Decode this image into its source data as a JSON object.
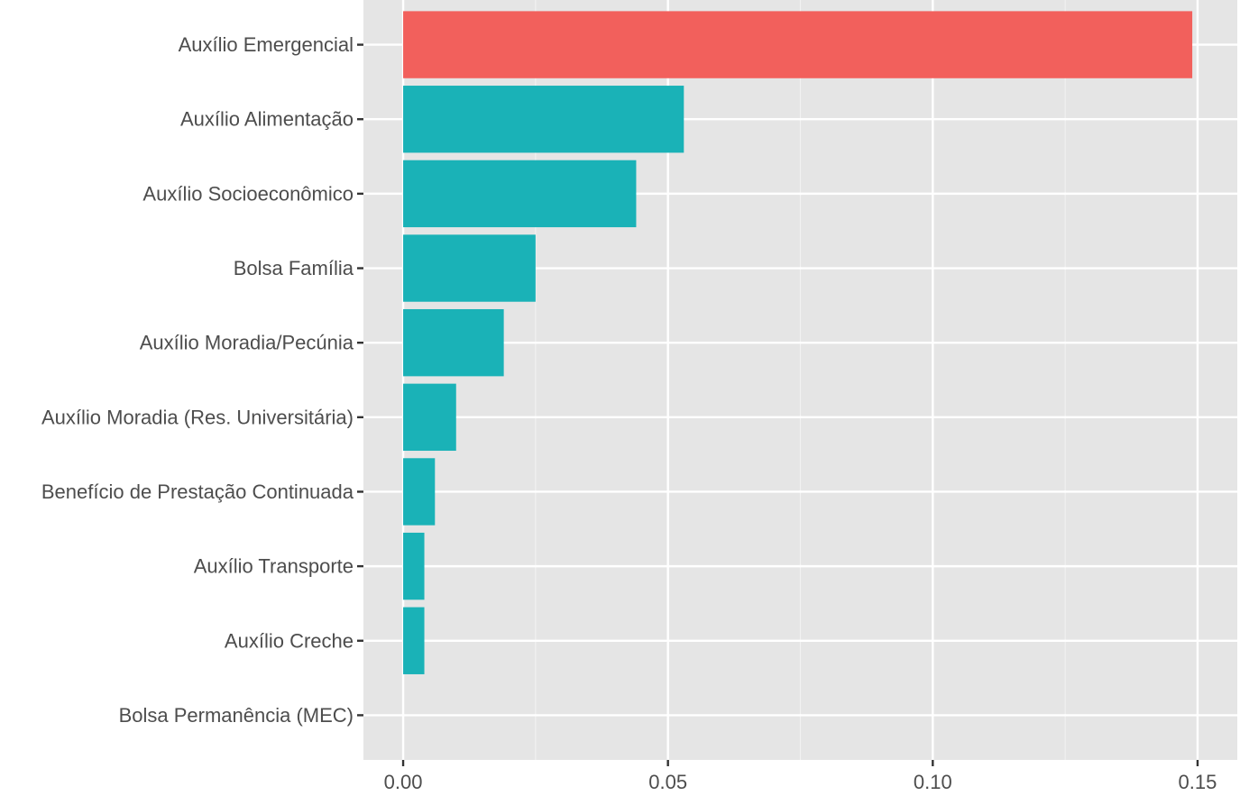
{
  "chart_data": {
    "type": "bar",
    "orientation": "horizontal",
    "title": "",
    "xlabel": "",
    "ylabel": "",
    "categories": [
      "Auxílio Emergencial",
      "Auxílio Alimentação",
      "Auxílio Socioeconômico",
      "Bolsa Família",
      "Auxílio Moradia/Pecúnia",
      "Auxílio Moradia (Res. Universitária)",
      "Benefício de Prestação Continuada",
      "Auxílio Transporte",
      "Auxílio Creche",
      "Bolsa Permanência (MEC)"
    ],
    "values": [
      0.149,
      0.053,
      0.044,
      0.025,
      0.019,
      0.01,
      0.006,
      0.004,
      0.004,
      0.0
    ],
    "highlight": [
      true,
      false,
      false,
      false,
      false,
      false,
      false,
      false,
      false,
      false
    ],
    "xlim": [
      -0.0075,
      0.1575
    ],
    "x_ticks": [
      0.0,
      0.05,
      0.1,
      0.15
    ],
    "x_tick_labels": [
      "0.00",
      "0.05",
      "0.10",
      "0.15"
    ],
    "grid": true,
    "legend": "none",
    "colors": {
      "panel_background": "#e5e5e5",
      "grid_major": "#ffffff",
      "grid_minor": "#f2f2f2",
      "highlight_bar": "#f2605c",
      "bar": "#1ab2b7",
      "tick": "#333333",
      "text": "#4d4d4d"
    }
  }
}
